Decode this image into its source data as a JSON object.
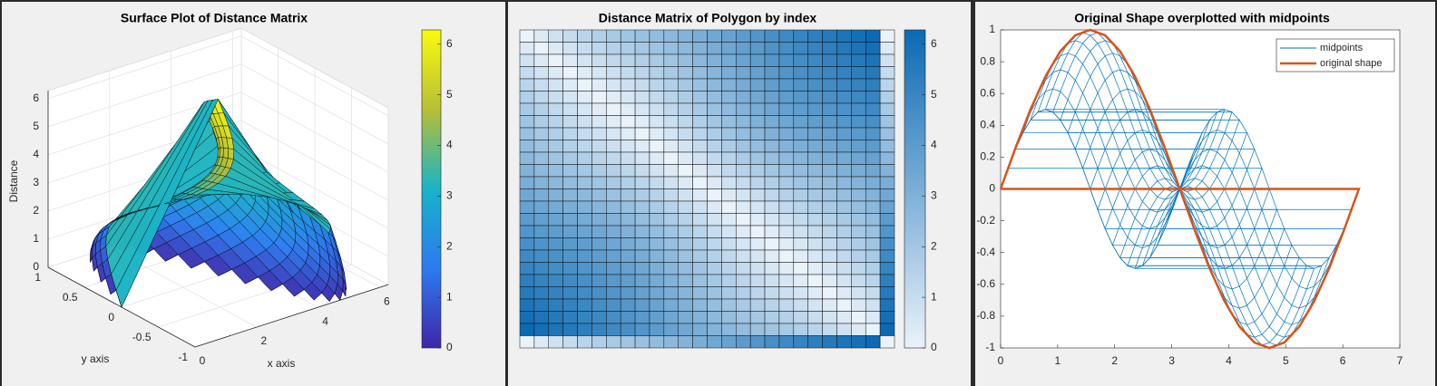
{
  "chart_data": [
    {
      "type": "surface",
      "title": "Surface Plot of Distance Matrix",
      "xlabel": "x axis",
      "ylabel": "y axis",
      "zlabel": "Distance",
      "xlim": [
        0,
        6.283
      ],
      "ylim": [
        -1,
        1
      ],
      "zlim": [
        0,
        6.283
      ],
      "xticks": [
        0,
        2,
        4,
        6
      ],
      "yticks": [
        -1,
        -0.5,
        0,
        0.5,
        1
      ],
      "zticks": [
        0,
        1,
        2,
        3,
        4,
        5,
        6
      ],
      "clim": [
        0,
        6.283
      ],
      "colorbar_ticks": [
        0,
        1,
        2,
        3,
        4,
        5,
        6
      ]
    },
    {
      "type": "heatmap",
      "title": "Distance Matrix of Polygon by index",
      "clim": [
        0,
        6.283
      ],
      "colorbar_ticks": [
        0,
        1,
        2,
        3,
        4,
        5,
        6
      ]
    },
    {
      "type": "line",
      "title": "Original Shape overplotted with midpoints",
      "xlim": [
        0,
        7
      ],
      "ylim": [
        -1,
        1
      ],
      "xticks": [
        0,
        1,
        2,
        3,
        4,
        5,
        6,
        7
      ],
      "yticks": [
        -1,
        -0.8,
        -0.6,
        -0.4,
        -0.2,
        0,
        0.2,
        0.4,
        0.6,
        0.8,
        1
      ],
      "legend": "northeast",
      "series": [
        {
          "name": "midpoints",
          "color": "#0072bd"
        },
        {
          "name": "original shape",
          "color": "#d95319",
          "x": [
            0,
            0.262,
            0.524,
            0.785,
            1.047,
            1.309,
            1.571,
            1.833,
            2.094,
            2.356,
            2.618,
            2.88,
            3.142,
            3.403,
            3.665,
            3.927,
            4.189,
            4.451,
            4.712,
            4.974,
            5.236,
            5.498,
            5.76,
            6.021,
            6.283,
            0
          ],
          "y": [
            0,
            0.259,
            0.5,
            0.707,
            0.866,
            0.966,
            1,
            0.966,
            0.866,
            0.707,
            0.5,
            0.259,
            0,
            -0.259,
            -0.5,
            -0.707,
            -0.866,
            -0.966,
            -1,
            -0.966,
            -0.866,
            -0.707,
            -0.5,
            -0.259,
            0,
            0
          ]
        }
      ]
    }
  ]
}
